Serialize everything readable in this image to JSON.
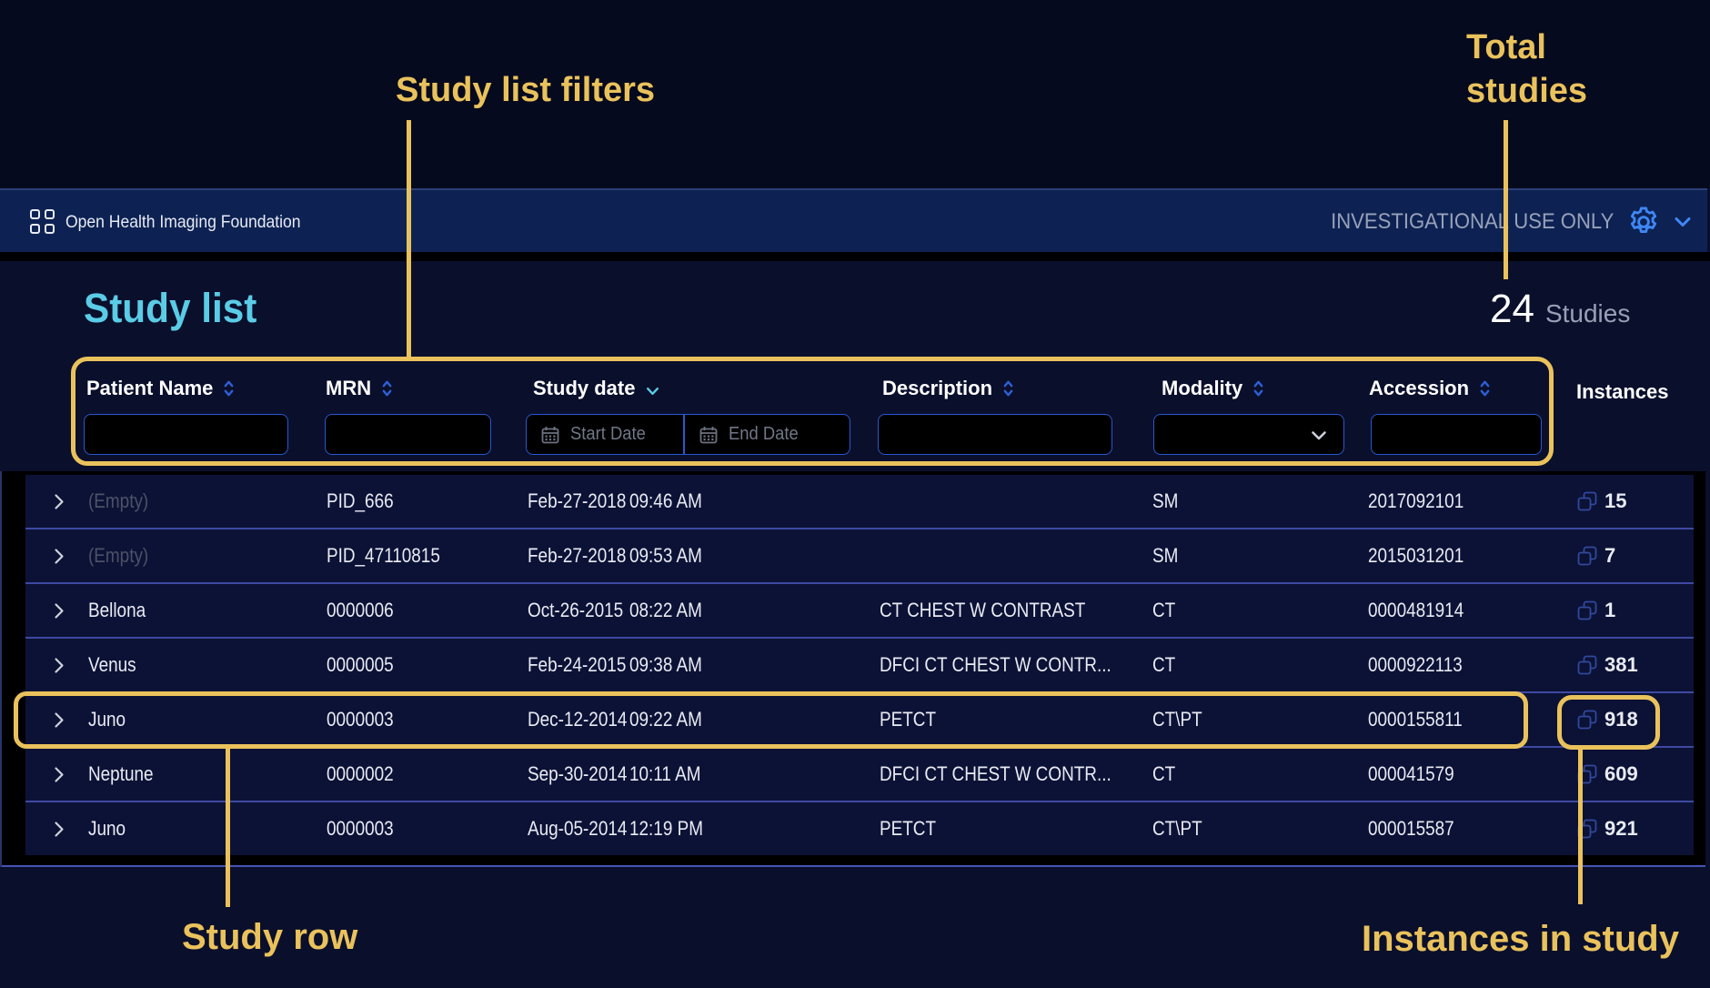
{
  "annotations": {
    "filters_label": "Study list filters",
    "total_line1": "Total",
    "total_line2": "studies",
    "row_label": "Study row",
    "instances_label": "Instances in study",
    "accent_color": "#eac25c"
  },
  "topbar": {
    "brand": "Open Health Imaging Foundation",
    "mode_label": "INVESTIGATIONAL USE ONLY"
  },
  "header": {
    "title": "Study list",
    "total_count": "24",
    "count_suffix": "Studies"
  },
  "filters": {
    "patient_name_label": "Patient Name",
    "mrn_label": "MRN",
    "study_date_label": "Study date",
    "start_date_placeholder": "Start Date",
    "end_date_placeholder": "End Date",
    "description_label": "Description",
    "modality_label": "Modality",
    "accession_label": "Accession",
    "instances_label": "Instances"
  },
  "table": {
    "rows": [
      {
        "patient": "(Empty)",
        "mrn": "PID_666",
        "date": "Feb-27-2018",
        "time": "09:46 AM",
        "description": "",
        "modality": "SM",
        "accession": "2017092101",
        "instances": "15"
      },
      {
        "patient": "(Empty)",
        "mrn": "PID_47110815",
        "date": "Feb-27-2018",
        "time": "09:53 AM",
        "description": "",
        "modality": "SM",
        "accession": "2015031201",
        "instances": "7"
      },
      {
        "patient": "Bellona",
        "mrn": "0000006",
        "date": "Oct-26-2015",
        "time": "08:22 AM",
        "description": "CT CHEST W CONTRAST",
        "modality": "CT",
        "accession": "0000481914",
        "instances": "1"
      },
      {
        "patient": "Venus",
        "mrn": "0000005",
        "date": "Feb-24-2015",
        "time": "09:38 AM",
        "description": "DFCI CT CHEST W CONTR...",
        "modality": "CT",
        "accession": "0000922113",
        "instances": "381"
      },
      {
        "patient": "Juno",
        "mrn": "0000003",
        "date": "Dec-12-2014",
        "time": "09:22 AM",
        "description": "PETCT",
        "modality": "CT\\PT",
        "accession": "0000155811",
        "instances": "918"
      },
      {
        "patient": "Neptune",
        "mrn": "0000002",
        "date": "Sep-30-2014",
        "time": "10:11 AM",
        "description": "DFCI CT CHEST W CONTR...",
        "modality": "CT",
        "accession": "000041579",
        "instances": "609"
      },
      {
        "patient": "Juno",
        "mrn": "0000003",
        "date": "Aug-05-2014",
        "time": "12:19 PM",
        "description": "PETCT",
        "modality": "CT\\PT",
        "accession": "000015587",
        "instances": "921"
      }
    ]
  }
}
